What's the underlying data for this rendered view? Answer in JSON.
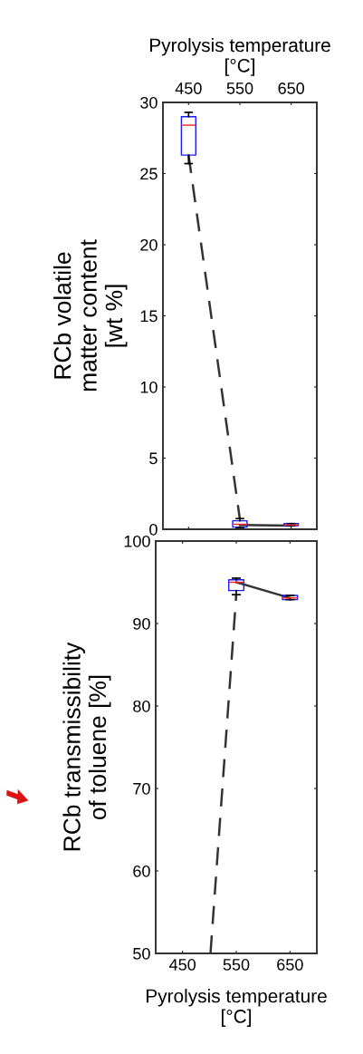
{
  "chart_data": [
    {
      "type": "box",
      "xlabel": "Pyrolysis temperature\n[°C]",
      "ylabel": "RCb volatile\nmatter content\n[wt %]",
      "xlim": [
        400,
        700
      ],
      "xticks": [
        450,
        550,
        650
      ],
      "ylim": [
        0,
        30
      ],
      "yticks": [
        0,
        5,
        10,
        15,
        20,
        25,
        30
      ],
      "grid": false,
      "series": [
        {
          "color": "#1a1aff",
          "x": [
            450,
            550,
            650
          ],
          "boxes": [
            {
              "low": 25.7,
              "q1": 26.3,
              "median": 28.4,
              "q3": 29.0,
              "high": 29.3
            },
            {
              "low": 0.1,
              "q1": 0.15,
              "median": 0.35,
              "q3": 0.6,
              "high": 0.75
            },
            {
              "low": 0.25,
              "q1": 0.25,
              "median": 0.3,
              "q3": 0.4,
              "high": 0.4
            }
          ]
        },
        {
          "type": "line",
          "x": [
            450,
            550
          ],
          "values": [
            26.3,
            0.7
          ],
          "color": "#333333",
          "line_style": "dashed"
        },
        {
          "type": "line",
          "x": [
            550,
            650
          ],
          "values": [
            0.3,
            0.25
          ],
          "color": "#333333",
          "line_style": "solid"
        }
      ]
    },
    {
      "type": "box",
      "xlabel": "Pyrolysis temperature\n[°C]",
      "ylabel": "RCb transmissibility\nof toluene [%]",
      "xlim": [
        400,
        700
      ],
      "xticks": [
        450,
        550,
        650
      ],
      "ylim": [
        50,
        100
      ],
      "yticks": [
        50,
        60,
        70,
        80,
        90,
        100
      ],
      "grid": false,
      "series": [
        {
          "color": "#1a1aff",
          "x": [
            550,
            650
          ],
          "boxes": [
            {
              "low": 93.5,
              "q1": 94.0,
              "median": 95.0,
              "q3": 95.3,
              "high": 95.5
            },
            {
              "low": 92.9,
              "q1": 92.9,
              "median": 93.1,
              "q3": 93.4,
              "high": 93.4
            }
          ]
        },
        {
          "type": "line",
          "x": [
            502,
            550
          ],
          "values": [
            50,
            93.5
          ],
          "color": "#333333",
          "line_style": "dashed"
        },
        {
          "type": "line",
          "x": [
            550,
            650
          ],
          "values": [
            95.0,
            93.1
          ],
          "color": "#333333",
          "line_style": "solid"
        }
      ]
    }
  ]
}
